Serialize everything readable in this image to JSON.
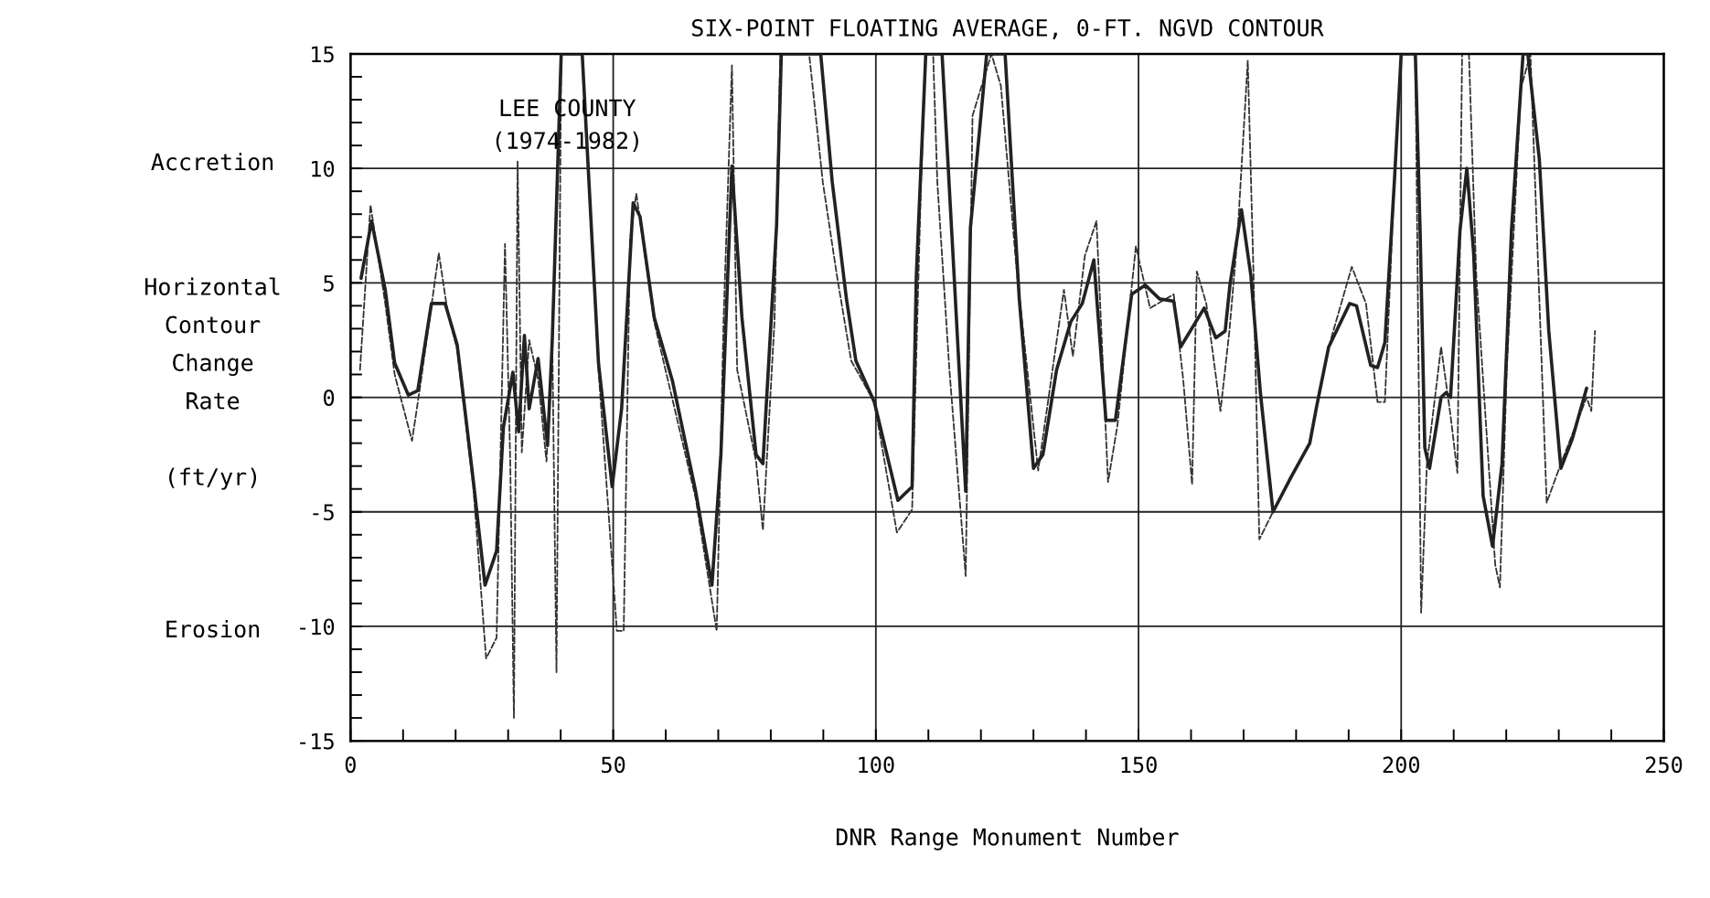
{
  "chart_data": {
    "type": "line",
    "title": "SIX-POINT FLOATING AVERAGE, 0-FT. NGVD CONTOUR",
    "xlabel": "DNR Range Monument Number",
    "ylabel": "Horizontal\nContour\nChange\nRate\n\n(ft/yr)",
    "annotations": [
      "LEE COUNTY\n(1974-1982)",
      "Accretion",
      "Erosion"
    ],
    "series": [
      {
        "color": "#222222",
        "line_style": "solid",
        "x": [
          2.0,
          4.0,
          6.6,
          8.4,
          11.0,
          12.8,
          15.4,
          18.0,
          20.3,
          23.4,
          25.6,
          27.8,
          29.1,
          30.9,
          32.0,
          33.1,
          34.0,
          35.7,
          37.5,
          38.4,
          40.1,
          44.1,
          47.2,
          49.8,
          51.6,
          53.8,
          55.1,
          57.8,
          61.3,
          65.7,
          68.8,
          70.5,
          72.6,
          74.5,
          77.2,
          78.5,
          81.1,
          82.0,
          89.5,
          91.7,
          94.4,
          96.2,
          99.7,
          104.2,
          106.9,
          107.7,
          109.5,
          112.6,
          114.9,
          117.1,
          118.0,
          121.1,
          124.6,
          127.3,
          130.0,
          131.8,
          134.4,
          137.1,
          139.3,
          141.5,
          143.8,
          145.6,
          148.7,
          151.3,
          154.0,
          156.7,
          158.0,
          162.5,
          164.7,
          166.5,
          167.4,
          169.6,
          171.4,
          173.2,
          175.6,
          179.0,
          182.6,
          183.9,
          186.2,
          190.2,
          191.5,
          194.2,
          195.5,
          196.9,
          198.7,
          200.0,
          202.7,
          203.6,
          204.5,
          205.4,
          207.6,
          208.5,
          209.4,
          211.2,
          212.5,
          213.8,
          215.6,
          217.4,
          219.2,
          221.0,
          223.2,
          224.1,
          226.3,
          228.1,
          230.4,
          232.6,
          235.3
        ],
        "values": [
          5.2,
          7.7,
          4.7,
          1.5,
          0.1,
          0.3,
          4.1,
          4.1,
          2.3,
          -3.7,
          -8.2,
          -6.7,
          -1.3,
          1.1,
          -1.5,
          2.7,
          -0.5,
          1.7,
          -2.1,
          2.5,
          15,
          15,
          1.5,
          -3.9,
          -0.5,
          8.5,
          7.9,
          3.5,
          0.7,
          -4.1,
          -8.2,
          -2.5,
          10.1,
          3.5,
          -2.5,
          -2.9,
          7.5,
          15,
          15,
          9.4,
          4.3,
          1.6,
          -0.2,
          -4.5,
          -3.9,
          5.3,
          15,
          15,
          5.3,
          -4.1,
          7.4,
          15,
          15,
          4.3,
          -3.1,
          -2.5,
          1.2,
          3.3,
          4.1,
          6.0,
          -1.0,
          -1.0,
          4.5,
          4.9,
          4.3,
          4.2,
          2.2,
          3.9,
          2.6,
          2.9,
          4.9,
          8.2,
          5.3,
          0.2,
          -5.0,
          -3.5,
          -2.0,
          -0.4,
          2.2,
          4.1,
          4.0,
          1.4,
          1.3,
          2.4,
          9.4,
          15,
          15,
          7.3,
          -2.2,
          -3.1,
          0,
          0.2,
          0,
          7.3,
          10.0,
          6.3,
          -4.3,
          -6.5,
          -2.9,
          7.3,
          15,
          15,
          10.4,
          2.9,
          -3.1,
          -1.8,
          0.4
        ]
      },
      {
        "color": "#333333",
        "line_style": "dashed",
        "x": [
          1.8,
          3.8,
          6.6,
          8.4,
          11.7,
          13.2,
          16.8,
          18.5,
          20.3,
          23.4,
          25.8,
          27.8,
          29.4,
          30.4,
          31.1,
          31.8,
          32.6,
          34.0,
          35.7,
          37.3,
          38.4,
          39.2,
          40.1,
          44.1,
          47.2,
          50.7,
          52.0,
          53.2,
          54.4,
          57.8,
          65.7,
          69.7,
          71.0,
          72.6,
          73.6,
          77.2,
          78.5,
          80.7,
          81.8,
          87.3,
          89.9,
          92.6,
          95.3,
          99.7,
          104.0,
          106.9,
          108.6,
          109.5,
          110.9,
          111.7,
          114.0,
          117.1,
          118.4,
          122.0,
          123.8,
          126.9,
          130.9,
          135.8,
          137.5,
          139.8,
          142.0,
          144.2,
          146.0,
          149.5,
          152.2,
          156.7,
          158.5,
          160.2,
          161.1,
          162.9,
          165.6,
          167.3,
          168.8,
          170.8,
          171.9,
          173.0,
          175.6,
          182.6,
          186.2,
          190.6,
          193.3,
          195.5,
          196.9,
          198.7,
          200.0,
          202.7,
          203.8,
          204.9,
          207.6,
          209.4,
          210.7,
          211.6,
          212.9,
          214.3,
          217.9,
          218.8,
          220.1,
          222.8,
          224.6,
          226.3,
          227.7,
          230.4,
          235.3,
          236.2,
          236.9
        ],
        "values": [
          1.2,
          8.4,
          4.1,
          1.0,
          -1.9,
          0.4,
          6.3,
          3.7,
          2.1,
          -4.0,
          -11.4,
          -10.5,
          6.7,
          -2.8,
          -14.0,
          10.3,
          -2.4,
          2.5,
          0.8,
          -2.8,
          2.5,
          -12.0,
          15,
          15,
          1.2,
          -10.2,
          -10.2,
          6.9,
          8.9,
          3.3,
          -4.4,
          -10.2,
          3.3,
          14.5,
          1.2,
          -2.8,
          -5.8,
          3.3,
          15,
          15,
          9.4,
          5.3,
          1.6,
          -0.2,
          -5.9,
          -4.9,
          9.4,
          15,
          15,
          9.4,
          1.2,
          -7.8,
          12.3,
          15,
          13.6,
          5.3,
          -3.2,
          4.7,
          1.8,
          6.2,
          7.7,
          -3.7,
          -1.2,
          6.6,
          3.9,
          4.5,
          0.8,
          -3.8,
          5.5,
          4.1,
          -0.6,
          2.9,
          6.9,
          14.7,
          5.3,
          -6.2,
          -5.0,
          -2.0,
          2.2,
          5.7,
          4.1,
          -0.2,
          -0.2,
          9.4,
          15,
          15,
          -9.4,
          -2.9,
          2.2,
          -0.8,
          -3.3,
          15,
          15,
          5.3,
          -7.3,
          -8.3,
          1.2,
          13.5,
          15,
          4.3,
          -4.6,
          -2.9,
          0,
          -0.6,
          2.9
        ]
      }
    ],
    "xlim": [
      0,
      250
    ],
    "ylim": [
      -15,
      15
    ],
    "xticks": [
      0,
      {
        "value": 10,
        "label": null
      },
      {
        "value": 20,
        "label": null
      },
      {
        "value": 30,
        "label": null
      },
      {
        "value": 40,
        "label": null
      },
      50,
      {
        "value": 60,
        "label": null
      },
      {
        "value": 70,
        "label": null
      },
      {
        "value": 80,
        "label": null
      },
      {
        "value": 90,
        "label": null
      },
      100,
      {
        "value": 110,
        "label": null
      },
      {
        "value": 120,
        "label": null
      },
      {
        "value": 130,
        "label": null
      },
      {
        "value": 140,
        "label": null
      },
      150,
      {
        "value": 160,
        "label": null
      },
      {
        "value": 170,
        "label": null
      },
      {
        "value": 180,
        "label": null
      },
      {
        "value": 190,
        "label": null
      },
      200,
      {
        "value": 210,
        "label": null
      },
      {
        "value": 220,
        "label": null
      },
      {
        "value": 230,
        "label": null
      },
      {
        "value": 240,
        "label": null
      },
      250
    ],
    "yticks": [
      -15,
      {
        "value": -14,
        "label": null
      },
      {
        "value": -13,
        "label": null
      },
      {
        "value": -12,
        "label": null
      },
      {
        "value": -11,
        "label": null
      },
      -10,
      {
        "value": -9,
        "label": null
      },
      {
        "value": -8,
        "label": null
      },
      {
        "value": -7,
        "label": null
      },
      {
        "value": -6,
        "label": null
      },
      -5,
      {
        "value": -4,
        "label": null
      },
      {
        "value": -3,
        "label": null
      },
      {
        "value": -2,
        "label": null
      },
      {
        "value": -1,
        "label": null
      },
      0,
      {
        "value": 1,
        "label": null
      },
      {
        "value": 2,
        "label": null
      },
      {
        "value": 3,
        "label": null
      },
      {
        "value": 4,
        "label": null
      },
      5,
      {
        "value": 6,
        "label": null
      },
      {
        "value": 7,
        "label": null
      },
      {
        "value": 8,
        "label": null
      },
      {
        "value": 9,
        "label": null
      },
      10,
      {
        "value": 11,
        "label": null
      },
      {
        "value": 12,
        "label": null
      },
      {
        "value": 13,
        "label": null
      },
      {
        "value": 14,
        "label": null
      },
      15
    ],
    "grid": true,
    "marker": "none"
  }
}
